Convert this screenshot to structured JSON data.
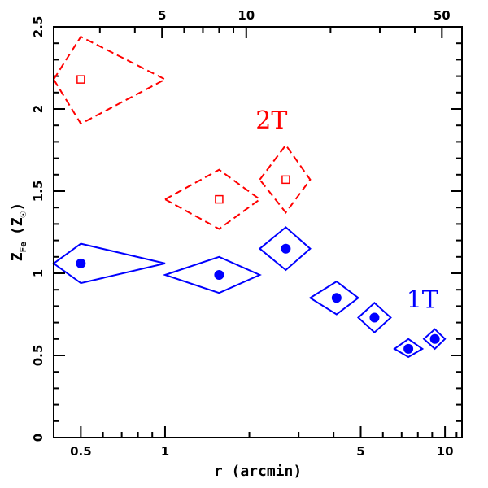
{
  "chart_data": {
    "type": "scatter",
    "title": "",
    "xlabel": "r (arcmin)",
    "ylabel_main": "Z",
    "ylabel_sub": "Fe",
    "ylabel_unit": "(Z",
    "ylabel_unit_close": ")",
    "x_scale": "log",
    "xlim": [
      0.4,
      11.5
    ],
    "ylim": [
      0,
      2.5
    ],
    "x_ticks": [
      {
        "v": 0.5,
        "label": "0.5"
      },
      {
        "v": 1,
        "label": "1"
      },
      {
        "v": 5,
        "label": "5"
      },
      {
        "v": 10,
        "label": "10"
      }
    ],
    "x_minor_ticks": [
      0.4,
      0.6,
      0.7,
      0.8,
      0.9,
      2,
      3,
      4,
      6,
      7,
      8,
      9,
      11
    ],
    "top_axis_ticks": [
      {
        "v": 0.975,
        "label": "5"
      },
      {
        "v": 1.95,
        "label": "10"
      },
      {
        "v": 9.75,
        "label": "50"
      }
    ],
    "top_axis_minor_ticks": [
      0.39,
      0.585,
      0.78,
      1.17,
      1.365,
      1.56,
      1.755,
      3.9,
      5.85,
      7.8
    ],
    "y_ticks": [
      {
        "v": 0,
        "label": "0"
      },
      {
        "v": 0.5,
        "label": "0.5"
      },
      {
        "v": 1,
        "label": "1"
      },
      {
        "v": 1.5,
        "label": "1.5"
      },
      {
        "v": 2,
        "label": "2"
      },
      {
        "v": 2.5,
        "label": "2.5"
      }
    ],
    "series": [
      {
        "name": "2T",
        "color": "#ff0000",
        "marker": "open-square",
        "dashed": true,
        "points": [
          {
            "x": 0.5,
            "y": 2.18,
            "xlo": 0.4,
            "xhi": 1.0,
            "ylo": 1.91,
            "yhi": 2.44
          },
          {
            "x": 1.56,
            "y": 1.45,
            "xlo": 1.0,
            "xhi": 2.18,
            "ylo": 1.27,
            "yhi": 1.63
          },
          {
            "x": 2.7,
            "y": 1.57,
            "xlo": 2.18,
            "xhi": 3.3,
            "ylo": 1.37,
            "yhi": 1.78
          }
        ]
      },
      {
        "name": "1T",
        "color": "#0000ff",
        "marker": "filled-circle",
        "dashed": false,
        "points": [
          {
            "x": 0.5,
            "y": 1.06,
            "xlo": 0.4,
            "xhi": 1.0,
            "ylo": 0.94,
            "yhi": 1.18
          },
          {
            "x": 1.56,
            "y": 0.99,
            "xlo": 1.0,
            "xhi": 2.18,
            "ylo": 0.88,
            "yhi": 1.1
          },
          {
            "x": 2.7,
            "y": 1.15,
            "xlo": 2.18,
            "xhi": 3.3,
            "ylo": 1.02,
            "yhi": 1.28
          },
          {
            "x": 4.1,
            "y": 0.85,
            "xlo": 3.3,
            "xhi": 4.9,
            "ylo": 0.75,
            "yhi": 0.95
          },
          {
            "x": 5.6,
            "y": 0.73,
            "xlo": 4.9,
            "xhi": 6.4,
            "ylo": 0.64,
            "yhi": 0.82
          },
          {
            "x": 7.4,
            "y": 0.54,
            "xlo": 6.6,
            "xhi": 8.3,
            "ylo": 0.49,
            "yhi": 0.6
          },
          {
            "x": 9.2,
            "y": 0.6,
            "xlo": 8.4,
            "xhi": 10.0,
            "ylo": 0.54,
            "yhi": 0.66
          }
        ]
      }
    ],
    "labels": [
      {
        "text": "2T",
        "x": 2.4,
        "y": 1.88,
        "color": "#ff0000"
      },
      {
        "text": "1T",
        "x": 8.3,
        "y": 0.79,
        "color": "#0000ff"
      }
    ]
  }
}
